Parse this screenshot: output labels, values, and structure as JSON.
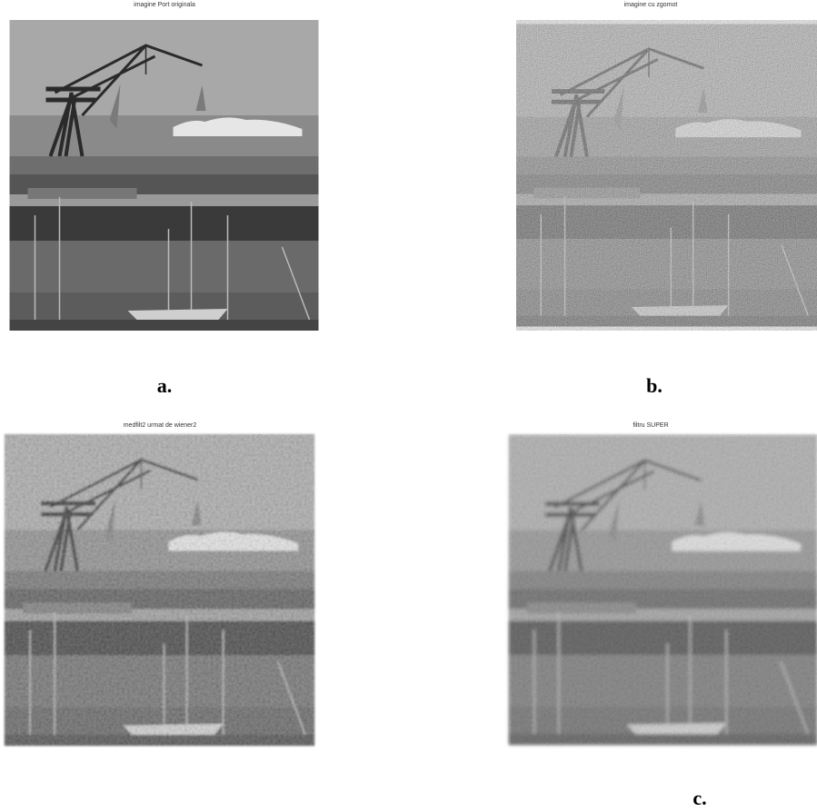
{
  "panels": [
    {
      "title": "imagine Port originala"
    },
    {
      "title": "imagine cu zgomot"
    },
    {
      "title": "medfilt2 urmat de wiener2"
    },
    {
      "title": "filtru SUPER"
    }
  ],
  "labels": [
    "a.",
    "b.",
    "c."
  ]
}
